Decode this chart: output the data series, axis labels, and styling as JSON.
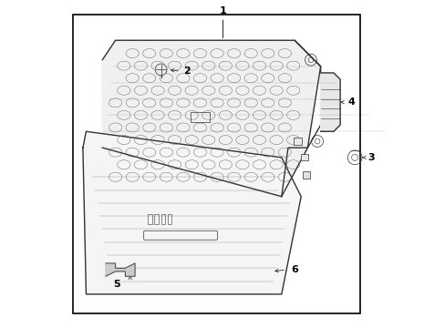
{
  "background_color": "#ffffff",
  "border_color": "#000000",
  "line_color": "#333333",
  "label_color": "#000000",
  "figsize": [
    4.89,
    3.6
  ],
  "dpi": 100
}
